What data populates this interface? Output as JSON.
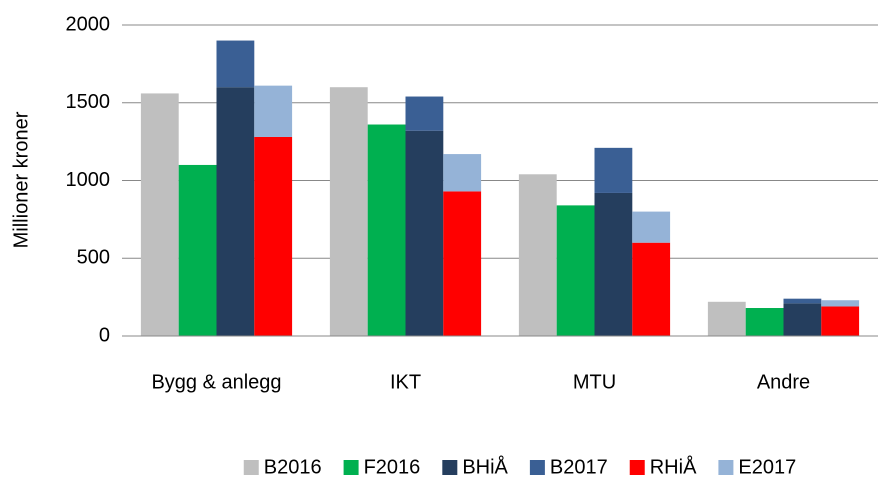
{
  "chart_data": {
    "type": "bar",
    "y_label": "Millioner kroner",
    "categories": [
      "Bygg & anlegg",
      "IKT",
      "MTU",
      "Andre"
    ],
    "series": [
      {
        "name": "B2016",
        "color": "#bfbfbf",
        "values": [
          1560,
          1600,
          1040,
          220
        ]
      },
      {
        "name": "F2016",
        "color": "#00b050",
        "values": [
          1100,
          1360,
          840,
          180
        ]
      },
      {
        "name": "BHiÅ",
        "color": "#253e5e",
        "values": [
          1600,
          1320,
          920,
          210
        ]
      },
      {
        "name": "B2017",
        "color": "#3a5f94",
        "stacked_on": "BHiÅ",
        "values": [
          300,
          220,
          290,
          30
        ]
      },
      {
        "name": "RHiÅ",
        "color": "#ff0000",
        "values": [
          1280,
          930,
          600,
          190
        ]
      },
      {
        "name": "E2017",
        "color": "#95b3d7",
        "stacked_on": "RHiÅ",
        "values": [
          330,
          240,
          200,
          40
        ]
      }
    ],
    "ylim": [
      0,
      2000
    ],
    "yticks": [
      0,
      500,
      1000,
      1500,
      2000
    ],
    "grid": true,
    "legend": "bottom"
  }
}
